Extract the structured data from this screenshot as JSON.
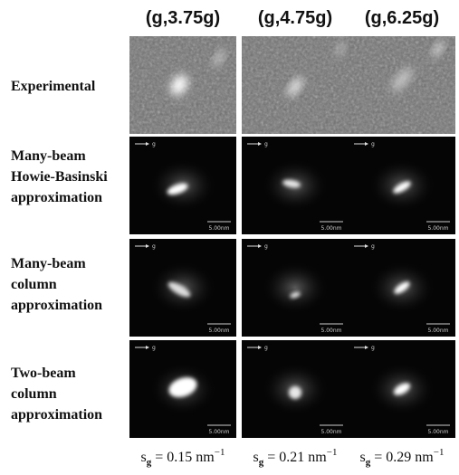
{
  "columns": [
    {
      "header": "(g,3.75g)",
      "footer": {
        "symbol": "s",
        "subscript": "g",
        "text": "= 0.15 nm",
        "superscript": "−1"
      }
    },
    {
      "header": "(g,4.75g)",
      "footer": {
        "symbol": "s",
        "subscript": "g",
        "text": "= 0.21 nm",
        "superscript": "−1"
      }
    },
    {
      "header": "(g,6.25g)",
      "footer": {
        "symbol": "s",
        "subscript": "g",
        "text": "= 0.29 nm",
        "superscript": "−1"
      }
    }
  ],
  "rows": [
    {
      "label": [
        "Experimental"
      ]
    },
    {
      "label": [
        "Many-beam",
        "Howie-Basinski",
        "approximation"
      ]
    },
    {
      "label": [
        "Many-beam",
        "column",
        "approximation"
      ]
    },
    {
      "label": [
        "Two-beam",
        "column",
        "approximation"
      ]
    }
  ],
  "panel_labels": {
    "direction": "g",
    "scale_bar": "5.00nm"
  }
}
